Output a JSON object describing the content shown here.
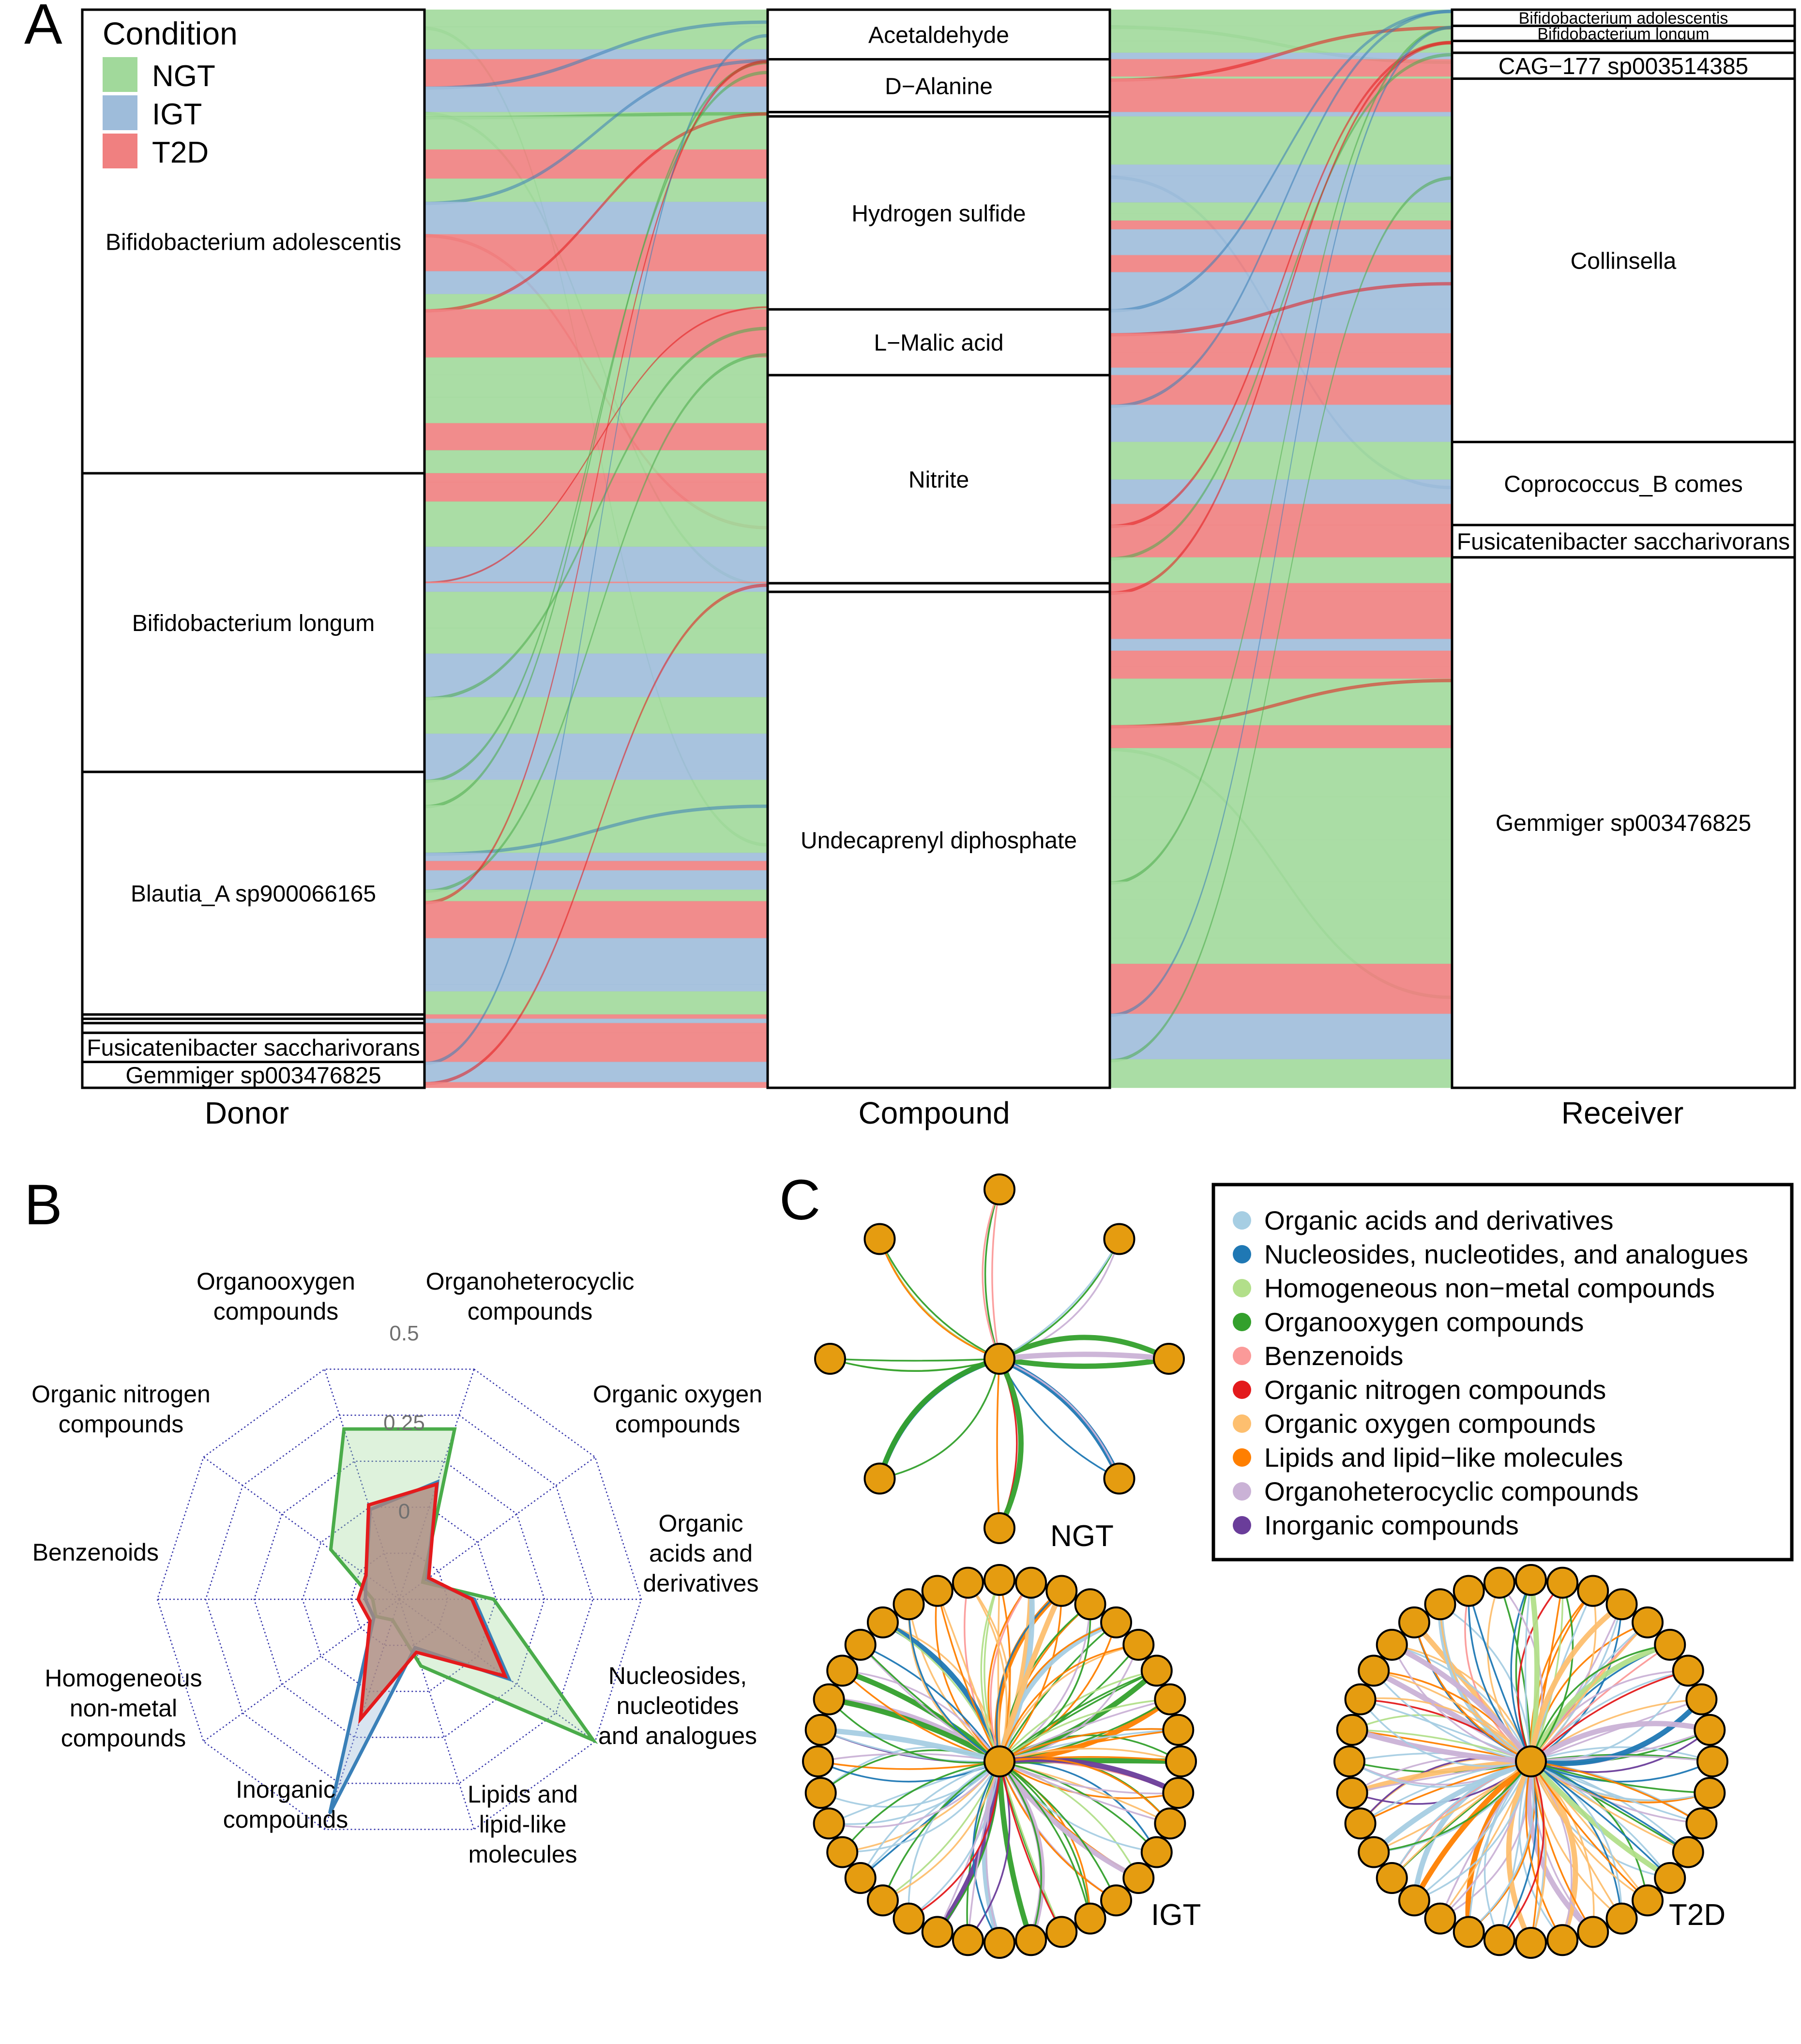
{
  "panels": {
    "A": "A",
    "B": "B",
    "C": "C"
  },
  "colors": {
    "NGT": "#a1d99b",
    "IGT": "#9ebcda",
    "T2D": "#f08080",
    "NGT_line": "#4aac4a",
    "IGT_line": "#3a80b8",
    "T2D_line": "#e41a1c",
    "node_fill": "#e59c10"
  },
  "chart_data": [
    {
      "panel": "A",
      "type": "alluvial",
      "axes": [
        "Donor",
        "Compound",
        "Receiver"
      ],
      "legend": {
        "title": "Condition",
        "items": [
          "NGT",
          "IGT",
          "T2D"
        ],
        "placement": "top-left"
      },
      "donor": [
        {
          "name": "Bifidobacterium adolescentis",
          "share": 0.43
        },
        {
          "name": "Bifidobacterium longum",
          "share": 0.277
        },
        {
          "name": "Blautia_A sp900066165",
          "share": 0.225
        },
        {
          "name": "",
          "share": 0.004
        },
        {
          "name": "",
          "share": 0.004
        },
        {
          "name": "",
          "share": 0.009
        },
        {
          "name": "Fusicatenibacter saccharivorans",
          "share": 0.027
        },
        {
          "name": "Gemmiger sp003476825",
          "share": 0.024
        }
      ],
      "compound": [
        {
          "name": "Acetaldehyde",
          "share": 0.046
        },
        {
          "name": "D−Alanine",
          "share": 0.049
        },
        {
          "name": "",
          "share": 0.004
        },
        {
          "name": "Hydrogen sulfide",
          "share": 0.179
        },
        {
          "name": "L−Malic acid",
          "share": 0.061
        },
        {
          "name": "Nitrite",
          "share": 0.193
        },
        {
          "name": "",
          "share": 0.008
        },
        {
          "name": "Undecaprenyl diphosphate",
          "share": 0.46
        }
      ],
      "receiver": [
        {
          "name": "Bifidobacterium adolescentis",
          "share": 0.015
        },
        {
          "name": "Bifidobacterium longum",
          "share": 0.014
        },
        {
          "name": "",
          "share": 0.011
        },
        {
          "name": "CAG−177 sp003514385",
          "share": 0.024
        },
        {
          "name": "Collinsella",
          "share": 0.337
        },
        {
          "name": "Coprococcus_B comes",
          "share": 0.077
        },
        {
          "name": "Fusicatenibacter saccharivorans",
          "share": 0.03
        },
        {
          "name": "Gemmiger sp003476825",
          "share": 0.492
        }
      ]
    },
    {
      "panel": "B",
      "type": "radar",
      "scale_labels": [
        "0",
        "0.25",
        "0.5"
      ],
      "range": [
        -0.25,
        0.75
      ],
      "axes": [
        "Organoheterocyclic compounds",
        "Organic oxygen compounds",
        "Organic acids and derivatives",
        "Nucleosides, nucleotides and analogues",
        "Lipids and lipid-like molecules",
        "Inorganic compounds",
        "Homogeneous non-metal compounds",
        "Benzenoids",
        "Organic nitrogen compounds",
        "Organooxygen compounds"
      ],
      "axis_labels": [
        [
          "Organoheterocyclic",
          "compounds"
        ],
        [
          "Organic oxygen",
          "compounds"
        ],
        [
          "Organic",
          "acids and",
          "derivatives"
        ],
        [
          "Nucleosides,",
          "nucleotides",
          "and analogues"
        ],
        [
          "Lipids and",
          "lipid-like",
          "molecules"
        ],
        [
          "Inorganic",
          "compounds"
        ],
        [
          "Homogeneous",
          "non-metal",
          "compounds"
        ],
        [
          "Benzenoids"
        ],
        [
          "Organic nitrogen",
          "compounds"
        ],
        [
          "Organooxygen",
          "compounds"
        ]
      ],
      "series": [
        {
          "name": "NGT",
          "values": [
            0.49,
            -0.13,
            0.14,
            0.74,
            0.04,
            -0.16,
            -0.13,
            -0.14,
            0.1,
            0.49
          ]
        },
        {
          "name": "IGT",
          "values": [
            0.26,
            -0.11,
            0.06,
            0.31,
            -0.04,
            0.68,
            -0.12,
            -0.11,
            -0.08,
            0.14
          ]
        },
        {
          "name": "T2D",
          "values": [
            0.25,
            -0.1,
            0.05,
            0.29,
            -0.02,
            0.27,
            -0.1,
            -0.08,
            -0.08,
            0.16
          ]
        }
      ]
    },
    {
      "panel": "C",
      "type": "network",
      "legend": [
        {
          "label": "Organic acids and derivatives",
          "color": "#a6cee3"
        },
        {
          "label": "Nucleosides, nucleotides, and analogues",
          "color": "#1f78b4"
        },
        {
          "label": "Homogeneous non−metal compounds",
          "color": "#b2df8a"
        },
        {
          "label": "Organooxygen compounds",
          "color": "#33a02c"
        },
        {
          "label": "Benzenoids",
          "color": "#fb9a99"
        },
        {
          "label": "Organic nitrogen compounds",
          "color": "#e31a1c"
        },
        {
          "label": "Organic oxygen compounds",
          "color": "#fdbf6f"
        },
        {
          "label": "Lipids and lipid−like molecules",
          "color": "#ff7f00"
        },
        {
          "label": "Organoheterocyclic compounds",
          "color": "#cab2d6"
        },
        {
          "label": "Inorganic compounds",
          "color": "#6a3d9a"
        }
      ],
      "networks": [
        {
          "name": "NGT",
          "peripheral_nodes": 8,
          "edges": 24
        },
        {
          "name": "IGT",
          "peripheral_nodes": 36,
          "edges": 120
        },
        {
          "name": "T2D",
          "peripheral_nodes": 36,
          "edges": 140
        }
      ]
    }
  ]
}
